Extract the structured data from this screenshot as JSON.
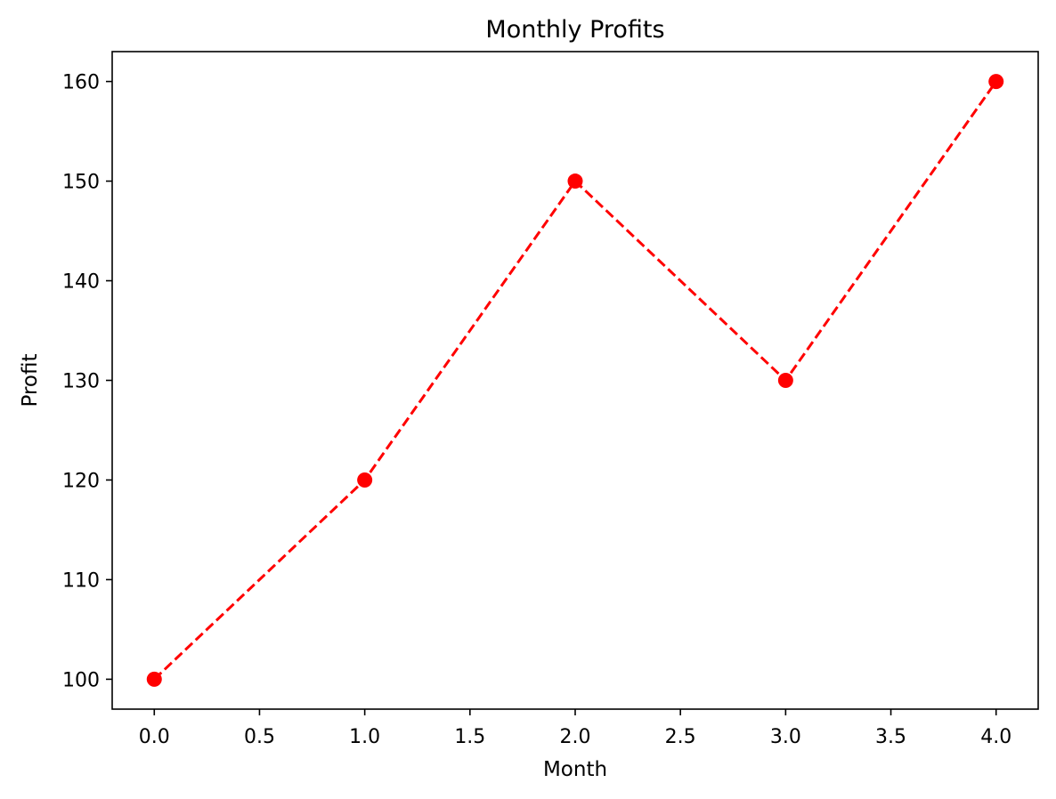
{
  "chart_data": {
    "type": "line",
    "title": "Monthly Profits",
    "xlabel": "Month",
    "ylabel": "Profit",
    "xlim": [
      -0.2,
      4.2
    ],
    "ylim": [
      97,
      163
    ],
    "x_ticks": [
      0.0,
      0.5,
      1.0,
      1.5,
      2.0,
      2.5,
      3.0,
      3.5,
      4.0
    ],
    "x_tick_labels": [
      "0.0",
      "0.5",
      "1.0",
      "1.5",
      "2.0",
      "2.5",
      "3.0",
      "3.5",
      "4.0"
    ],
    "y_ticks": [
      100,
      110,
      120,
      130,
      140,
      150,
      160
    ],
    "y_tick_labels": [
      "100",
      "110",
      "120",
      "130",
      "140",
      "150",
      "160"
    ],
    "grid": false,
    "legend": "none",
    "series": [
      {
        "x": [
          0,
          1,
          2,
          3,
          4
        ],
        "values": [
          100,
          120,
          150,
          130,
          160
        ],
        "color": "#ff0000",
        "line_style": "dashed",
        "marker": "circle"
      }
    ]
  }
}
